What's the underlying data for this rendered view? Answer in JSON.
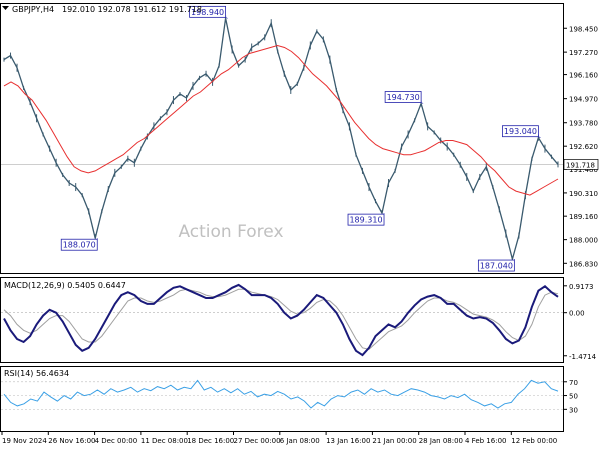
{
  "header": {
    "symbol": "GBPJPY,H4",
    "ohlc": "192.010 192.078 191.612 191.718"
  },
  "watermark": "Action Forex",
  "colors": {
    "price": "#3a5a6e",
    "moving_average": "#e83030",
    "macd": "#1a1a7a",
    "signal": "#a0a0a0",
    "rsi": "#3aa0e6",
    "label_border": "#2222aa"
  },
  "chart_data": [
    {
      "type": "line",
      "panel": "price",
      "series": [
        {
          "values": [
            196.9,
            197.1,
            196.5,
            195.5,
            194.8,
            194.0,
            193.2,
            192.5,
            191.8,
            191.2,
            190.8,
            190.6,
            190.2,
            189.4,
            188.07,
            189.4,
            190.5,
            191.3,
            191.6,
            192.0,
            191.8,
            192.5,
            193.1,
            193.6,
            194.0,
            194.3,
            194.9,
            195.2,
            195.0,
            195.6,
            196.0,
            196.2,
            195.8,
            196.6,
            198.94,
            197.4,
            196.6,
            196.9,
            197.5,
            197.7,
            198.0,
            198.7,
            197.3,
            196.2,
            195.4,
            195.7,
            196.5,
            197.6,
            198.3,
            197.9,
            196.9,
            195.4,
            194.4,
            193.6,
            192.2,
            191.4,
            190.6,
            189.9,
            189.31,
            190.8,
            191.4,
            192.6,
            193.2,
            193.9,
            194.73,
            193.6,
            193.3,
            192.9,
            192.6,
            192.2,
            191.7,
            191.1,
            190.4,
            191.1,
            191.6,
            190.6,
            189.5,
            188.3,
            187.04,
            188.2,
            190.2,
            192.0,
            193.04,
            192.5,
            192.1,
            191.718
          ]
        },
        {
          "values": [
            195.6,
            195.8,
            195.6,
            195.2,
            194.9,
            194.4,
            193.9,
            193.3,
            192.7,
            192.1,
            191.6,
            191.4,
            191.3,
            191.4,
            191.6,
            191.8,
            192.0,
            192.2,
            192.5,
            192.8,
            193.0,
            193.3,
            193.6,
            193.9,
            194.2,
            194.5,
            194.8,
            195.1,
            195.3,
            195.6,
            195.9,
            196.2,
            196.4,
            196.7,
            197.0,
            197.2,
            197.3,
            197.4,
            197.5,
            197.6,
            197.5,
            197.3,
            197.0,
            196.6,
            196.2,
            195.9,
            195.6,
            195.2,
            194.8,
            194.3,
            193.8,
            193.4,
            193.0,
            192.7,
            192.5,
            192.4,
            192.3,
            192.2,
            192.2,
            192.3,
            192.4,
            192.6,
            192.8,
            192.9,
            192.9,
            192.8,
            192.7,
            192.4,
            192.1,
            191.7,
            191.4,
            191.0,
            190.6,
            190.4,
            190.3,
            190.2,
            190.4,
            190.6,
            190.8,
            191.0
          ]
        }
      ],
      "ylim": [
        186.4,
        199.6
      ],
      "y_ticks": [
        "198.450",
        "197.270",
        "196.160",
        "194.970",
        "193.780",
        "192.620",
        "191.480",
        "190.310",
        "189.160",
        "188.000",
        "186.830"
      ],
      "last_price_label": "191.718",
      "annotations": [
        "198.940",
        "194.730",
        "193.040",
        "189.310",
        "188.070",
        "187.040"
      ]
    },
    {
      "type": "line",
      "panel": "macd",
      "title": "MACD(12,26,9) 0.5405 0.6447",
      "series": [
        {
          "values": [
            -0.2,
            -0.6,
            -0.9,
            -1.0,
            -0.8,
            -0.4,
            -0.1,
            0.1,
            0.0,
            -0.3,
            -0.7,
            -1.1,
            -1.3,
            -1.2,
            -0.9,
            -0.5,
            -0.1,
            0.3,
            0.6,
            0.7,
            0.6,
            0.4,
            0.3,
            0.3,
            0.5,
            0.7,
            0.85,
            0.9,
            0.8,
            0.7,
            0.6,
            0.5,
            0.5,
            0.6,
            0.7,
            0.85,
            0.95,
            0.8,
            0.6,
            0.6,
            0.6,
            0.5,
            0.3,
            0.0,
            -0.2,
            -0.1,
            0.1,
            0.35,
            0.6,
            0.5,
            0.25,
            0.0,
            -0.4,
            -0.9,
            -1.3,
            -1.45,
            -1.2,
            -0.8,
            -0.6,
            -0.4,
            -0.5,
            -0.3,
            0.0,
            0.25,
            0.45,
            0.55,
            0.6,
            0.5,
            0.3,
            0.3,
            0.1,
            -0.1,
            -0.2,
            -0.15,
            -0.2,
            -0.35,
            -0.6,
            -0.9,
            -1.05,
            -0.95,
            -0.5,
            0.2,
            0.75,
            0.9,
            0.7,
            0.5405
          ]
        },
        {
          "values": [
            0.1,
            -0.1,
            -0.4,
            -0.6,
            -0.7,
            -0.6,
            -0.4,
            -0.2,
            -0.1,
            -0.1,
            -0.3,
            -0.6,
            -0.9,
            -1.0,
            -1.0,
            -0.8,
            -0.5,
            -0.2,
            0.1,
            0.4,
            0.5,
            0.5,
            0.4,
            0.35,
            0.4,
            0.5,
            0.6,
            0.75,
            0.8,
            0.75,
            0.7,
            0.6,
            0.55,
            0.55,
            0.6,
            0.7,
            0.8,
            0.8,
            0.7,
            0.65,
            0.6,
            0.55,
            0.45,
            0.25,
            0.05,
            -0.05,
            0.0,
            0.15,
            0.35,
            0.45,
            0.4,
            0.2,
            -0.1,
            -0.5,
            -0.9,
            -1.2,
            -1.25,
            -1.05,
            -0.85,
            -0.65,
            -0.55,
            -0.45,
            -0.25,
            0.0,
            0.2,
            0.4,
            0.5,
            0.5,
            0.4,
            0.35,
            0.25,
            0.1,
            -0.05,
            -0.1,
            -0.15,
            -0.25,
            -0.4,
            -0.65,
            -0.85,
            -0.95,
            -0.8,
            -0.4,
            0.2,
            0.6,
            0.7,
            0.6447
          ]
        }
      ],
      "ylim": [
        -1.65,
        1.15
      ],
      "y_ticks": [
        "0.9173",
        "0.00",
        "-1.4714"
      ]
    },
    {
      "type": "line",
      "panel": "rsi",
      "title": "RSI(14) 56.4634",
      "series": [
        {
          "values": [
            52,
            40,
            35,
            38,
            45,
            42,
            55,
            48,
            42,
            50,
            45,
            55,
            50,
            52,
            58,
            52,
            60,
            55,
            58,
            62,
            55,
            60,
            57,
            63,
            60,
            65,
            58,
            62,
            60,
            72,
            58,
            62,
            55,
            60,
            54,
            60,
            52,
            56,
            48,
            52,
            50,
            56,
            52,
            45,
            48,
            42,
            32,
            40,
            35,
            45,
            50,
            48,
            55,
            58,
            52,
            60,
            55,
            58,
            52,
            50,
            55,
            60,
            58,
            55,
            50,
            48,
            45,
            50,
            47,
            52,
            44,
            40,
            35,
            38,
            32,
            38,
            40,
            52,
            60,
            72,
            68,
            70,
            60,
            56.4634
          ]
        }
      ],
      "ylim": [
        0,
        90
      ],
      "y_ticks": [
        "70",
        "50",
        "30"
      ]
    }
  ],
  "x_axis": {
    "labels": [
      "19 Nov 2024",
      "26 Nov 16:00",
      "4 Dec 00:00",
      "11 Dec 08:00",
      "18 Dec 16:00",
      "27 Dec 00:00",
      "6 Jan 08:00",
      "13 Jan 16:00",
      "21 Jan 00:00",
      "28 Jan 08:00",
      "4 Feb 16:00",
      "12 Feb 00:00"
    ]
  }
}
